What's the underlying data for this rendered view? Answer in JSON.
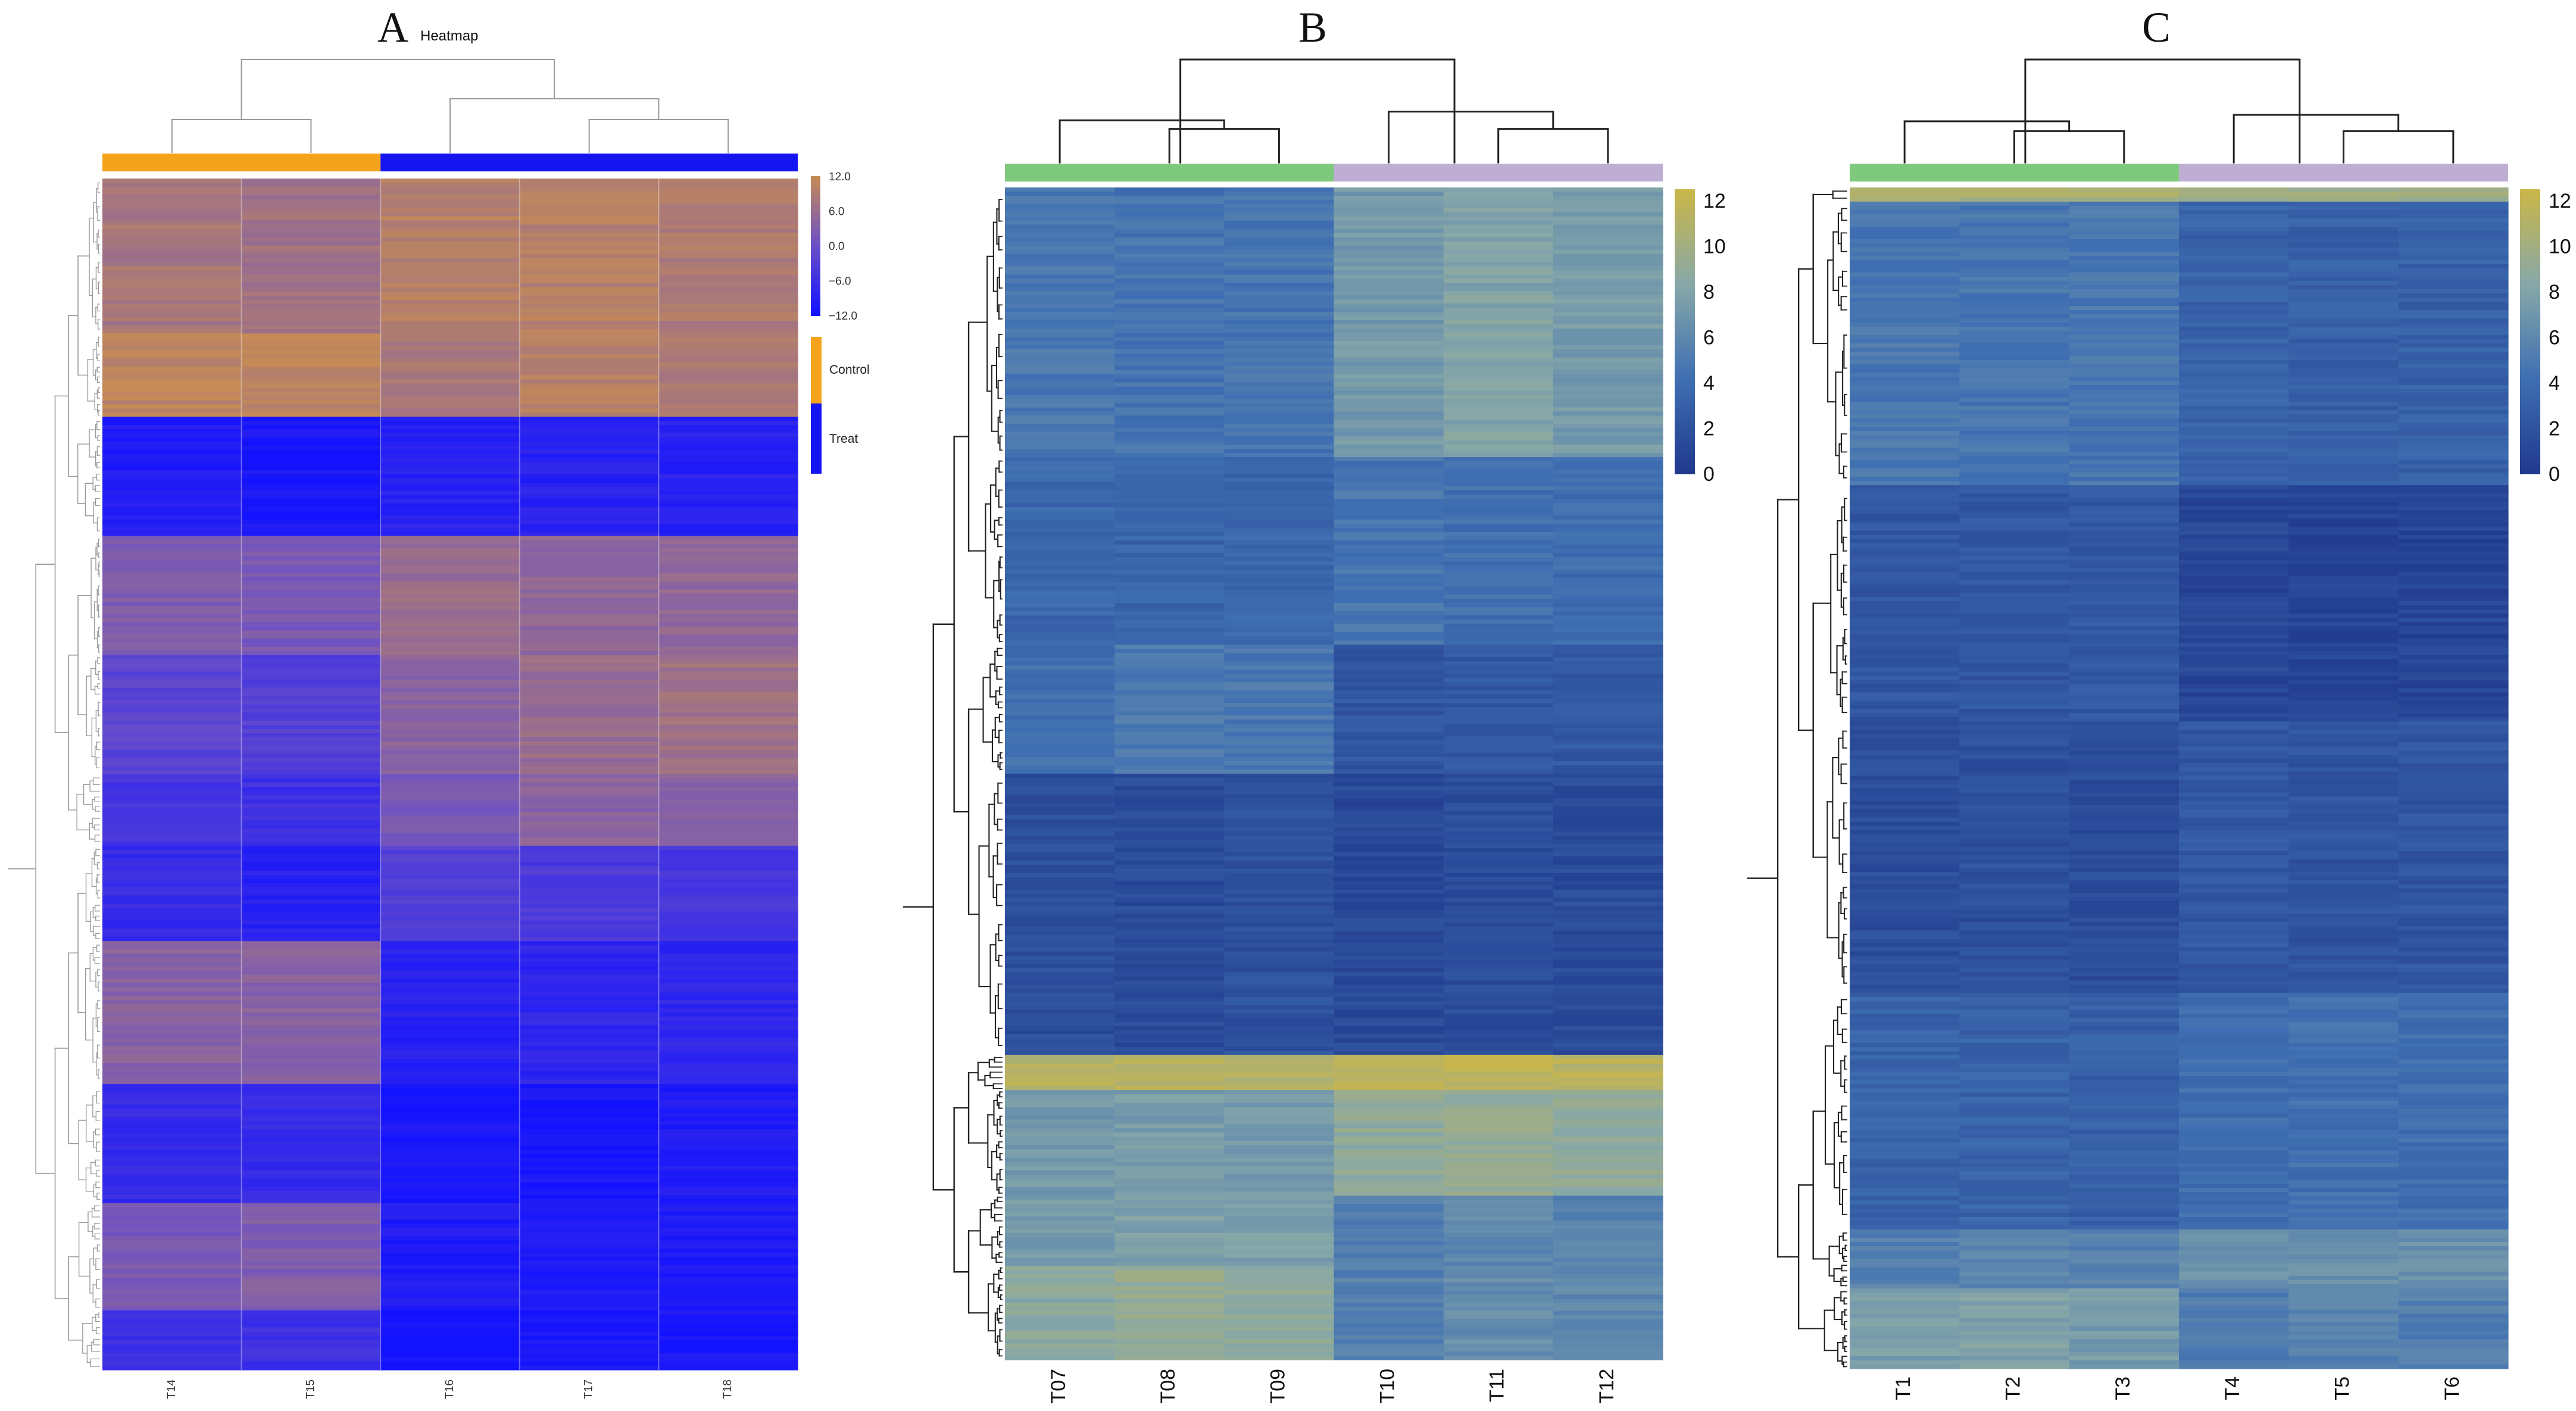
{
  "chart_data": [
    {
      "panel": "A",
      "type": "heatmap",
      "title": "Heatmap",
      "columns": [
        "T14",
        "T15",
        "T16",
        "T17",
        "T18"
      ],
      "groups": [
        {
          "name": "Control",
          "color": "#f5a21c",
          "columns": [
            "T14",
            "T15"
          ]
        },
        {
          "name": "Treat",
          "color": "#1414f0",
          "columns": [
            "T16",
            "T17",
            "T18"
          ]
        }
      ],
      "color_scale": {
        "min": -12.0,
        "max": 12.0,
        "ticks": [
          "12.0",
          "6.0",
          "0.0",
          "−6.0",
          "−12.0"
        ],
        "colors": [
          "#1212ff",
          "#6a4fc8",
          "#c58a56"
        ]
      },
      "row_blocks": [
        {
          "rows": 0.13,
          "values": [
            8,
            7,
            10,
            10,
            9
          ]
        },
        {
          "rows": 0.07,
          "values": [
            11,
            11,
            8,
            10,
            9
          ]
        },
        {
          "rows": 0.1,
          "values": [
            -10,
            -11,
            -9,
            -9,
            -9
          ]
        },
        {
          "rows": 0.1,
          "values": [
            3,
            2,
            6,
            5,
            5
          ]
        },
        {
          "rows": 0.1,
          "values": [
            -2,
            -3,
            4,
            6,
            7
          ]
        },
        {
          "rows": 0.06,
          "values": [
            -5,
            -6,
            2,
            4,
            4
          ]
        },
        {
          "rows": 0.08,
          "values": [
            -7,
            -9,
            -3,
            -4,
            -5
          ]
        },
        {
          "rows": 0.12,
          "values": [
            4,
            4,
            -9,
            -8,
            -8
          ]
        },
        {
          "rows": 0.1,
          "values": [
            -7,
            -7,
            -11,
            -11,
            -10
          ]
        },
        {
          "rows": 0.09,
          "values": [
            2,
            3,
            -10,
            -10,
            -10
          ]
        },
        {
          "rows": 0.05,
          "values": [
            -6,
            -6,
            -12,
            -11,
            -11
          ]
        }
      ],
      "col_dendrogram": [
        [
          0,
          1,
          1.3
        ],
        [
          3,
          4,
          1.3
        ],
        [
          2,
          3.5,
          2.1
        ],
        [
          0.5,
          2.75,
          3.6
        ]
      ]
    },
    {
      "panel": "B",
      "type": "heatmap",
      "title": "",
      "columns": [
        "T07",
        "T08",
        "T09",
        "T10",
        "T11",
        "T12"
      ],
      "groups": [
        {
          "name": "",
          "color": "#7fc97f",
          "columns": [
            "T07",
            "T08",
            "T09"
          ]
        },
        {
          "name": "",
          "color": "#beaed4",
          "columns": [
            "T10",
            "T11",
            "T12"
          ]
        }
      ],
      "color_scale": {
        "min": 0,
        "max": 12.5,
        "ticks": [
          "12",
          "10",
          "8",
          "6",
          "4",
          "2",
          "0"
        ],
        "colors": [
          "#213a8e",
          "#3f6fb2",
          "#87a8a8",
          "#c9b64a"
        ]
      },
      "row_blocks": [
        {
          "rows": 0.23,
          "values": [
            4.8,
            4.5,
            4.6,
            7.2,
            8.0,
            7.4
          ]
        },
        {
          "rows": 0.16,
          "values": [
            3.6,
            3.4,
            3.5,
            4.6,
            4.2,
            4.0
          ]
        },
        {
          "rows": 0.11,
          "values": [
            4.2,
            5.0,
            4.8,
            2.2,
            2.5,
            2.4
          ]
        },
        {
          "rows": 0.24,
          "values": [
            1.6,
            1.4,
            1.8,
            1.2,
            1.5,
            1.3
          ]
        },
        {
          "rows": 0.03,
          "values": [
            11.2,
            11.4,
            11.0,
            11.6,
            11.8,
            11.5
          ]
        },
        {
          "rows": 0.09,
          "values": [
            7.2,
            7.5,
            7.3,
            8.9,
            9.2,
            9.0
          ]
        },
        {
          "rows": 0.06,
          "values": [
            7.5,
            7.8,
            7.6,
            5.2,
            6.0,
            5.6
          ]
        },
        {
          "rows": 0.08,
          "values": [
            8.6,
            9.2,
            8.8,
            5.4,
            6.4,
            6.0
          ]
        }
      ],
      "col_dendrogram": [
        [
          1,
          2,
          1.2
        ],
        [
          0,
          1.5,
          1.5
        ],
        [
          4,
          5,
          1.2
        ],
        [
          3,
          4.5,
          1.8
        ],
        [
          1.1,
          3.6,
          3.6
        ]
      ]
    },
    {
      "panel": "C",
      "type": "heatmap",
      "title": "",
      "columns": [
        "T1",
        "T2",
        "T3",
        "T4",
        "T5",
        "T6"
      ],
      "groups": [
        {
          "name": "",
          "color": "#7fc97f",
          "columns": [
            "T1",
            "T2",
            "T3"
          ]
        },
        {
          "name": "",
          "color": "#beaed4",
          "columns": [
            "T4",
            "T5",
            "T6"
          ]
        }
      ],
      "color_scale": {
        "min": 0,
        "max": 12.5,
        "ticks": [
          "12",
          "10",
          "8",
          "6",
          "4",
          "2",
          "0"
        ],
        "colors": [
          "#213a8e",
          "#3f6fb2",
          "#87a8a8",
          "#c9b64a"
        ]
      },
      "row_blocks": [
        {
          "rows": 0.012,
          "values": [
            10.5,
            10.5,
            10.5,
            10.0,
            10.0,
            10.0
          ]
        },
        {
          "rows": 0.24,
          "values": [
            4.8,
            4.6,
            4.7,
            3.2,
            3.0,
            3.1
          ]
        },
        {
          "rows": 0.2,
          "values": [
            2.2,
            2.3,
            2.5,
            1.0,
            0.8,
            0.9
          ]
        },
        {
          "rows": 0.23,
          "values": [
            1.6,
            1.8,
            1.5,
            2.3,
            2.1,
            2.2
          ]
        },
        {
          "rows": 0.2,
          "values": [
            3.2,
            3.3,
            3.0,
            4.0,
            4.2,
            4.1
          ]
        },
        {
          "rows": 0.05,
          "values": [
            5.5,
            5.8,
            5.6,
            6.8,
            6.5,
            6.6
          ]
        },
        {
          "rows": 0.068,
          "values": [
            7.6,
            7.9,
            7.4,
            5.2,
            5.6,
            5.3
          ]
        }
      ],
      "col_dendrogram": [
        [
          1,
          2,
          1.0
        ],
        [
          0,
          1.5,
          1.3
        ],
        [
          4,
          5,
          1.0
        ],
        [
          3,
          4.5,
          1.5
        ],
        [
          1.1,
          3.6,
          3.2
        ]
      ]
    }
  ],
  "legend_a": {
    "labels": [
      "Control",
      "Treat"
    ]
  },
  "colors": {
    "dendrogram_a": "#9a9a9a",
    "dendrogram_bc": "#222222",
    "divider_a": "#ffffff"
  }
}
